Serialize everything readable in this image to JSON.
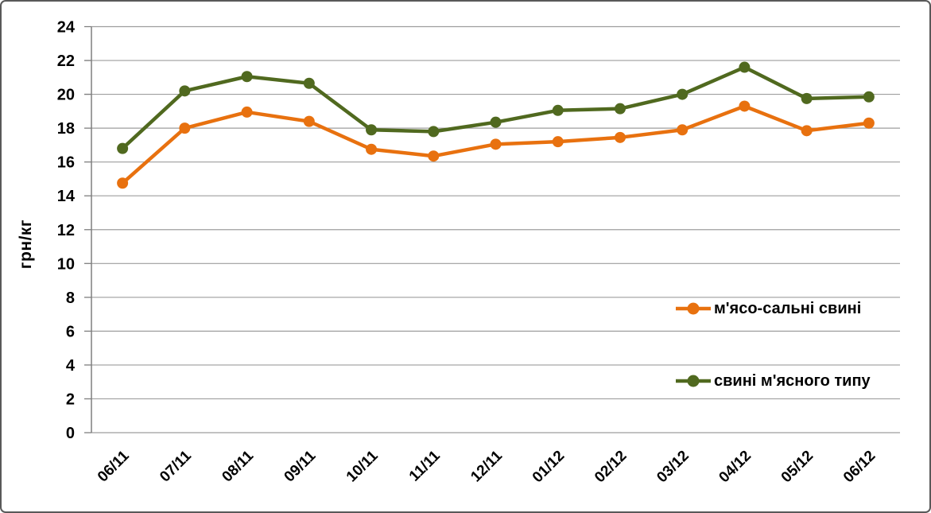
{
  "window": {
    "background": "#ffffff",
    "border_color": "#595959"
  },
  "chart_data": {
    "type": "line",
    "title": "",
    "ylabel": "грн/кг",
    "xlabel": "",
    "categories": [
      "06/11",
      "07/11",
      "08/11",
      "09/11",
      "10/11",
      "11/11",
      "12/11",
      "01/12",
      "02/12",
      "03/12",
      "04/12",
      "05/12",
      "06/12"
    ],
    "series": [
      {
        "name": "м'ясо-сальні свині",
        "color": "#E8710F",
        "values": [
          14.75,
          18.0,
          18.95,
          18.4,
          16.75,
          16.35,
          17.05,
          17.2,
          17.45,
          17.9,
          19.3,
          17.85,
          18.3
        ]
      },
      {
        "name": "свині м'ясного типу",
        "color": "#50691F",
        "values": [
          16.8,
          20.2,
          21.05,
          20.65,
          17.9,
          17.8,
          18.35,
          19.05,
          19.15,
          20.0,
          21.6,
          19.75,
          19.85
        ]
      }
    ],
    "ylim": [
      0,
      24
    ],
    "ytick_step": 2,
    "yticks": [
      0,
      2,
      4,
      6,
      8,
      10,
      12,
      14,
      16,
      18,
      20,
      22,
      24
    ],
    "grid": "horizontal",
    "legend_position": "inside-right",
    "marker": "circle",
    "axis_color": "#7f7f7f",
    "gridline_color": "#9e9e9e",
    "tick_label_color": "#000000"
  }
}
